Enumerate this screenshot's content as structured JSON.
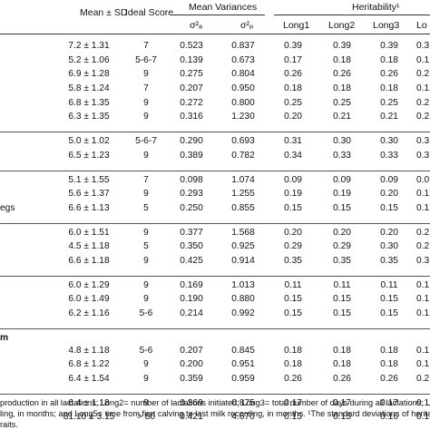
{
  "header": {
    "mean_sd": "Mean ± SD",
    "ideal_score": "Ideal Score",
    "mean_variances": "Mean Variances",
    "var_a": "σ²ₐ",
    "var_p": "σ²ₚ",
    "heritability": "Heritability¹",
    "long1": "Long1",
    "long2": "Long2",
    "long3": "Long3",
    "long4": "Lo"
  },
  "groups": [
    {
      "title": "",
      "rows": [
        {
          "label": "",
          "mean": "7.2 ± 1.31",
          "ideal": "7",
          "va": "0.523",
          "vp": "0.837",
          "l1": "0.39",
          "l2": "0.39",
          "l3": "0.39",
          "l4": "0.3"
        },
        {
          "label": "",
          "mean": "5.2 ± 1.06",
          "ideal": "5-6-7",
          "va": "0.139",
          "vp": "0.673",
          "l1": "0.17",
          "l2": "0.18",
          "l3": "0.18",
          "l4": "0.1"
        },
        {
          "label": "",
          "mean": "6.9 ± 1.28",
          "ideal": "9",
          "va": "0.275",
          "vp": "0.804",
          "l1": "0.26",
          "l2": "0.26",
          "l3": "0.26",
          "l4": "0.2"
        },
        {
          "label": "",
          "mean": "5.8 ± 1.24",
          "ideal": "7",
          "va": "0.207",
          "vp": "0.950",
          "l1": "0.18",
          "l2": "0.18",
          "l3": "0.18",
          "l4": "0.1"
        },
        {
          "label": "",
          "mean": "6.8 ± 1.35",
          "ideal": "9",
          "va": "0.272",
          "vp": "0.800",
          "l1": "0.25",
          "l2": "0.25",
          "l3": "0.25",
          "l4": "0.2"
        },
        {
          "label": "",
          "mean": "6.3 ± 1.35",
          "ideal": "9",
          "va": "0.316",
          "vp": "1.230",
          "l1": "0.20",
          "l2": "0.21",
          "l3": "0.21",
          "l4": "0.2"
        }
      ]
    },
    {
      "title": "",
      "rows": [
        {
          "label": "",
          "mean": "5.0 ± 1.02",
          "ideal": "5-6-7",
          "va": "0.290",
          "vp": "0.693",
          "l1": "0.31",
          "l2": "0.30",
          "l3": "0.30",
          "l4": "0.3"
        },
        {
          "label": "",
          "mean": "6.5 ± 1.23",
          "ideal": "9",
          "va": "0.389",
          "vp": "0.782",
          "l1": "0.34",
          "l2": "0.33",
          "l3": "0.33",
          "l4": "0.3"
        }
      ]
    },
    {
      "title": "",
      "rows": [
        {
          "label": "",
          "mean": "5.1 ± 1.55",
          "ideal": "7",
          "va": "0.098",
          "vp": "1.074",
          "l1": "0.09",
          "l2": "0.09",
          "l3": "0.09",
          "l4": "0.0"
        },
        {
          "label": "",
          "mean": "5.6 ± 1.37",
          "ideal": "9",
          "va": "0.293",
          "vp": "1.255",
          "l1": "0.19",
          "l2": "0.19",
          "l3": "0.20",
          "l4": "0.1"
        },
        {
          "label": "egs",
          "mean": "6.6 ± 1.13",
          "ideal": "5",
          "va": "0.250",
          "vp": "0.855",
          "l1": "0.15",
          "l2": "0.15",
          "l3": "0.15",
          "l4": "0.1"
        }
      ]
    },
    {
      "title": "",
      "rows": [
        {
          "label": "",
          "mean": "6.0 ± 1.51",
          "ideal": "9",
          "va": "0.377",
          "vp": "1.568",
          "l1": "0.20",
          "l2": "0.20",
          "l3": "0.20",
          "l4": "0.2"
        },
        {
          "label": "",
          "mean": "4.5 ± 1.18",
          "ideal": "5",
          "va": "0.350",
          "vp": "0.925",
          "l1": "0.29",
          "l2": "0.29",
          "l3": "0.30",
          "l4": "0.2"
        },
        {
          "label": "",
          "mean": "6.6 ± 1.18",
          "ideal": "9",
          "va": "0.425",
          "vp": "0.914",
          "l1": "0.35",
          "l2": "0.35",
          "l3": "0.35",
          "l4": "0.3"
        }
      ]
    },
    {
      "title": "",
      "rows": [
        {
          "label": "",
          "mean": "6.0 ± 1.29",
          "ideal": "9",
          "va": "0.169",
          "vp": "1.013",
          "l1": "0.11",
          "l2": "0.11",
          "l3": "0.11",
          "l4": "0.1"
        },
        {
          "label": "",
          "mean": "6.0 ± 1.49",
          "ideal": "9",
          "va": "0.190",
          "vp": "0.880",
          "l1": "0.15",
          "l2": "0.15",
          "l3": "0.15",
          "l4": "0.1"
        },
        {
          "label": "",
          "mean": "6.2 ± 1.16",
          "ideal": "5-6",
          "va": "0.214",
          "vp": "0.992",
          "l1": "0.15",
          "l2": "0.15",
          "l3": "0.15",
          "l4": "0.1"
        }
      ]
    },
    {
      "title": "m",
      "rows": [
        {
          "label": "",
          "mean": "4.8 ± 1.18",
          "ideal": "5-6",
          "va": "0.207",
          "vp": "0.845",
          "l1": "0.18",
          "l2": "0.18",
          "l3": "0.18",
          "l4": "0.1"
        },
        {
          "label": "",
          "mean": "6.8 ± 1.22",
          "ideal": "9",
          "va": "0.200",
          "vp": "0.951",
          "l1": "0.18",
          "l2": "0.18",
          "l3": "0.18",
          "l4": "0.1"
        },
        {
          "label": "",
          "mean": "6.4 ± 1.54",
          "ideal": "9",
          "va": "0.359",
          "vp": "0.959",
          "l1": "0.26",
          "l2": "0.26",
          "l3": "0.26",
          "l4": "0.2"
        }
      ]
    },
    {
      "title": "",
      "rows": [
        {
          "label": "",
          "mean": "6.4 ± 1.18",
          "ideal": "9",
          "va": "0.369",
          "vp": "0.875",
          "l1": "0.17",
          "l2": "0.17",
          "l3": "0.17",
          "l4": "0.1"
        },
        {
          "label": "",
          "mean": "81.10 ± 3.15",
          "ideal": "> 80",
          "va": "0.421",
          "vp": "4.670",
          "l1": "0.15",
          "l2": "0.15",
          "l3": "0.16",
          "l4": "0.1"
        }
      ]
    }
  ],
  "footnote": [
    "production in all lactations; Long2= number of lactations initiated; Long3= total number of days during all lactations; Long4=",
    "ling, in months; and Long5= time from first calving to last milk recording, in months. ¹The standard deviations of heritability ra",
    "raits."
  ]
}
